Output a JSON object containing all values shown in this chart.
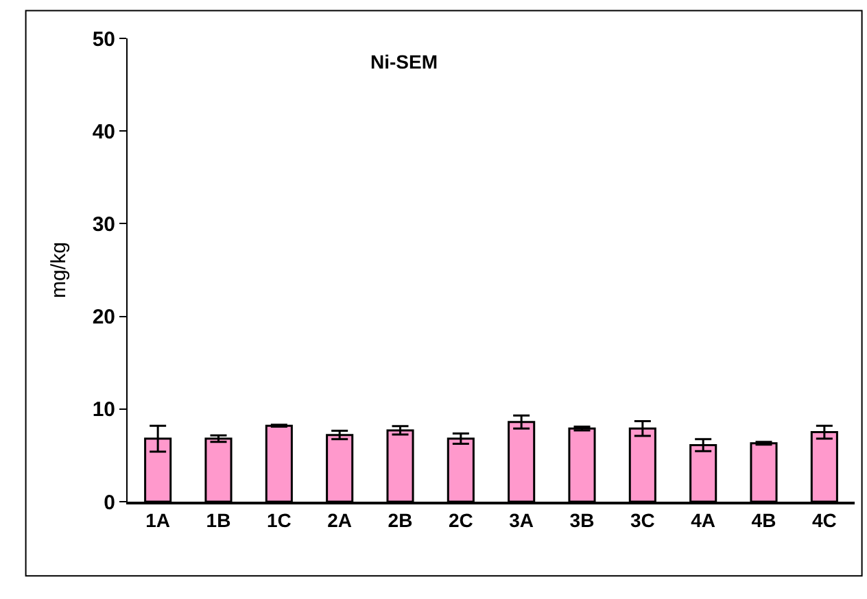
{
  "chart_data": {
    "type": "bar",
    "title": "Ni-SEM",
    "ylabel": "mg/kg",
    "categories": [
      "1A",
      "1B",
      "1C",
      "2A",
      "2B",
      "2C",
      "3A",
      "3B",
      "3C",
      "4A",
      "4B",
      "4C"
    ],
    "values": [
      6.8,
      6.8,
      8.2,
      7.2,
      7.7,
      6.8,
      8.6,
      7.9,
      7.9,
      6.1,
      6.3,
      7.5
    ],
    "errors": [
      1.4,
      0.35,
      0.1,
      0.45,
      0.45,
      0.55,
      0.7,
      0.2,
      0.8,
      0.65,
      0.15,
      0.7
    ],
    "color": "#ff99cc",
    "ylim": [
      0,
      50
    ],
    "yticks": [
      0,
      10,
      20,
      30,
      40,
      50
    ]
  }
}
